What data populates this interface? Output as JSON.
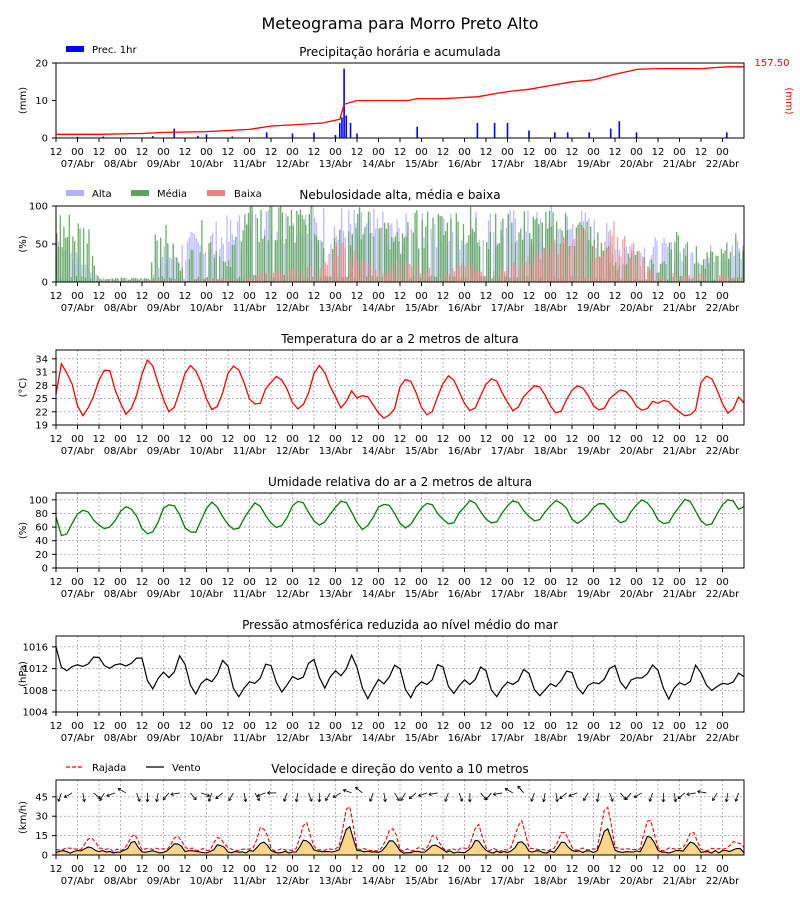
{
  "title": "Meteograma para Morro Preto Alto",
  "x_tick_hours": [
    "12",
    "00",
    "12",
    "00",
    "12",
    "00",
    "12",
    "00",
    "12",
    "00",
    "12",
    "00",
    "12",
    "00",
    "12",
    "00",
    "12",
    "00",
    "12",
    "00",
    "12",
    "00",
    "12",
    "00",
    "12",
    "00",
    "12",
    "00",
    "12",
    "00",
    "12",
    "00"
  ],
  "x_day_labels": [
    "07/Abr",
    "08/Abr",
    "09/Abr",
    "10/Abr",
    "11/Abr",
    "12/Abr",
    "13/Abr",
    "14/Abr",
    "15/Abr",
    "16/Abr",
    "17/Abr",
    "18/Abr",
    "19/Abr",
    "20/Abr",
    "21/Abr",
    "22/Abr"
  ],
  "colors": {
    "precip_bar": "#0000ff",
    "accum_line": "#ff0000",
    "alta": "#b0b0ff",
    "media": "#5aa55a",
    "baixa": "#f08080",
    "temp": "#ff0000",
    "rh": "#008000",
    "pres": "#000000",
    "gust": "#ff0000",
    "wind": "#000000",
    "wind_fill": "#ffd27a"
  },
  "chart_data": [
    {
      "type": "bar",
      "title": "Precipitação horária e acumulada",
      "ylabel": "(mm)",
      "ylabel_right": "(mm)",
      "ylim": [
        0,
        20
      ],
      "yticks": [
        "0",
        "10",
        "20"
      ],
      "legend": [
        "Prec. 1hr"
      ],
      "accum_end_label": "157.50",
      "hourly_bars": [
        [
          0.5,
          0.3
        ],
        [
          1.1,
          0.4
        ],
        [
          2.25,
          0.5
        ],
        [
          2.75,
          2.5
        ],
        [
          3.3,
          0.6
        ],
        [
          3.5,
          1.0
        ],
        [
          4.1,
          0.4
        ],
        [
          4.9,
          1.5
        ],
        [
          5.5,
          1.2
        ],
        [
          6.0,
          1.4
        ],
        [
          6.5,
          0.8
        ],
        [
          6.6,
          4
        ],
        [
          6.65,
          5.5
        ],
        [
          6.7,
          18.5
        ],
        [
          6.75,
          6
        ],
        [
          6.85,
          4
        ],
        [
          7.0,
          1.2
        ],
        [
          8.4,
          3.0
        ],
        [
          9.8,
          4
        ],
        [
          10.2,
          4
        ],
        [
          10.5,
          4
        ],
        [
          11.0,
          2
        ],
        [
          11.6,
          1.5
        ],
        [
          11.9,
          1.5
        ],
        [
          12.4,
          1.5
        ],
        [
          12.9,
          2.5
        ],
        [
          13.1,
          4.5
        ],
        [
          13.5,
          1.5
        ],
        [
          15.6,
          1.5
        ]
      ],
      "accum_x": [
        0,
        1,
        2,
        2.5,
        3.5,
        4.5,
        5.0,
        5.5,
        6.2,
        6.6,
        6.7,
        7.0,
        7.5,
        8.2,
        8.4,
        9.0,
        9.8,
        10.3,
        10.6,
        11.0,
        11.5,
        12.0,
        12.5,
        13.0,
        13.4,
        13.5,
        14.0,
        15.0,
        15.6,
        16.0
      ],
      "accum_y": [
        1,
        1,
        1.2,
        1.5,
        1.7,
        2.3,
        3.2,
        3.5,
        4,
        5,
        9,
        10,
        10,
        10,
        10.5,
        10.5,
        11,
        12,
        12.5,
        13,
        14,
        15,
        15.5,
        17,
        18,
        18.3,
        18.5,
        18.5,
        19,
        19
      ]
    },
    {
      "type": "bar",
      "title": "Nebulosidade alta, média e baixa",
      "ylabel": "(%)",
      "ylim": [
        0,
        100
      ],
      "yticks": [
        "0",
        "50",
        "100"
      ],
      "legend": [
        "Alta",
        "Média",
        "Baixa"
      ],
      "media_profile": [
        [
          0,
          90
        ],
        [
          0.8,
          70
        ],
        [
          1.0,
          5
        ],
        [
          2.2,
          5
        ],
        [
          2.3,
          90
        ],
        [
          2.6,
          60
        ],
        [
          3.0,
          10
        ],
        [
          3.3,
          70
        ],
        [
          3.7,
          60
        ],
        [
          4.0,
          20
        ],
        [
          4.3,
          90
        ],
        [
          5.0,
          95
        ],
        [
          5.8,
          90
        ],
        [
          6.2,
          85
        ],
        [
          6.6,
          75
        ],
        [
          7.0,
          85
        ],
        [
          7.6,
          80
        ],
        [
          8.0,
          55
        ],
        [
          8.4,
          80
        ],
        [
          9.0,
          85
        ],
        [
          9.6,
          90
        ],
        [
          10.0,
          80
        ],
        [
          10.6,
          75
        ],
        [
          11.0,
          85
        ],
        [
          11.5,
          80
        ],
        [
          12.0,
          85
        ],
        [
          12.5,
          70
        ],
        [
          13.0,
          30
        ],
        [
          13.6,
          35
        ],
        [
          14.0,
          20
        ],
        [
          14.5,
          80
        ],
        [
          15.0,
          30
        ],
        [
          15.5,
          40
        ],
        [
          16.0,
          70
        ]
      ],
      "alta_profile": [
        [
          0,
          70
        ],
        [
          1,
          5
        ],
        [
          2.2,
          5
        ],
        [
          2.5,
          40
        ],
        [
          3.3,
          60
        ],
        [
          4.3,
          80
        ],
        [
          5.0,
          90
        ],
        [
          6.0,
          90
        ],
        [
          7.0,
          85
        ],
        [
          8.0,
          75
        ],
        [
          9.0,
          80
        ],
        [
          10.0,
          85
        ],
        [
          11.0,
          80
        ],
        [
          12.0,
          90
        ],
        [
          13.0,
          60
        ],
        [
          14.0,
          50
        ],
        [
          15.0,
          40
        ],
        [
          16.0,
          50
        ]
      ],
      "baixa_profile": [
        [
          0,
          0
        ],
        [
          4.5,
          5
        ],
        [
          5.0,
          15
        ],
        [
          6.2,
          20
        ],
        [
          6.6,
          50
        ],
        [
          7.0,
          35
        ],
        [
          7.6,
          10
        ],
        [
          8.0,
          30
        ],
        [
          9.0,
          10
        ],
        [
          9.6,
          25
        ],
        [
          10.0,
          10
        ],
        [
          11.0,
          30
        ],
        [
          11.5,
          50
        ],
        [
          12.0,
          55
        ],
        [
          12.3,
          80
        ],
        [
          12.6,
          30
        ],
        [
          13.0,
          70
        ],
        [
          13.4,
          50
        ],
        [
          14.0,
          10
        ],
        [
          15.0,
          10
        ],
        [
          16.0,
          5
        ]
      ]
    },
    {
      "type": "line",
      "title": "Temperatura do ar a 2 metros de altura",
      "ylabel": "(°C)",
      "ylim": [
        19,
        36
      ],
      "yticks": [
        "19",
        "22",
        "25",
        "28",
        "31",
        "34"
      ],
      "daily_max": [
        32.5,
        31.8,
        33.2,
        32.8,
        32.2,
        30.2,
        32.2,
        26.0,
        29.8,
        30.0,
        29.5,
        28.0,
        28.0,
        27.0,
        24.5,
        30.5
      ],
      "daily_min": [
        21.5,
        21.8,
        22.2,
        22.5,
        23.2,
        23.0,
        23.0,
        20.5,
        21.5,
        22.5,
        22.5,
        21.8,
        22.5,
        22.5,
        21.0,
        22.0
      ],
      "start_value": 26.0,
      "end_value": 24.0
    },
    {
      "type": "line",
      "title": "Umidade relativa do ar a 2 metros de altura",
      "ylabel": "(%)",
      "ylim": [
        0,
        110
      ],
      "yticks": [
        "0",
        "20",
        "40",
        "60",
        "80",
        "100"
      ],
      "daily_max": [
        85,
        90,
        95,
        95,
        95,
        97,
        98,
        95,
        95,
        98,
        99,
        98,
        96,
        99,
        99,
        100
      ],
      "daily_min": [
        47,
        57,
        50,
        50,
        56,
        60,
        64,
        58,
        60,
        65,
        66,
        70,
        67,
        68,
        63,
        63
      ],
      "start_value": 75,
      "end_value": 90
    },
    {
      "type": "line",
      "title": "Pressão atmosférica reduzida ao nível médio do mar",
      "ylabel": "(hPa)",
      "ylim": [
        1004,
        1018
      ],
      "yticks": [
        "1004",
        "1008",
        "1012",
        "1016"
      ],
      "daily_max": [
        1013.8,
        1014.0,
        1013.8,
        1013.2,
        1012.5,
        1012.5,
        1014.0,
        1012.5,
        1012.2,
        1012.2,
        1011.5,
        1011.5,
        1011.5,
        1012.5,
        1012.0,
        1011.0
      ],
      "daily_min": [
        1011.5,
        1012.0,
        1008.5,
        1007.5,
        1007.0,
        1008.0,
        1009.0,
        1007.0,
        1007.0,
        1007.5,
        1007.2,
        1007.0,
        1007.5,
        1008.5,
        1006.8,
        1008.0
      ],
      "start_value": 1016.0,
      "end_value": 1010.5
    },
    {
      "type": "line",
      "title": "Velocidade e direção do vento a 10 metros",
      "ylabel": "(km/h)",
      "ylim": [
        0,
        58
      ],
      "yticks": [
        "0",
        "15",
        "30",
        "45"
      ],
      "legend": [
        "Rajada",
        "Vento"
      ],
      "wind_daily_peak": [
        6,
        10,
        9,
        8,
        10,
        12,
        22,
        12,
        8,
        12,
        11,
        10,
        20,
        15,
        10,
        5
      ],
      "gust_daily_peak": [
        14,
        16,
        15,
        14,
        22,
        26,
        38,
        22,
        16,
        23,
        26,
        18,
        37,
        28,
        18,
        10
      ],
      "wind_dirs": [
        200,
        240,
        170,
        130,
        210,
        250,
        300,
        160,
        180,
        190,
        220,
        260,
        140,
        110,
        200,
        230,
        210,
        170,
        150,
        250,
        270,
        200,
        190,
        160,
        180,
        210,
        240,
        290,
        310,
        200,
        170,
        150,
        210,
        230,
        250,
        260,
        200,
        160,
        180,
        140,
        220,
        260,
        300,
        320,
        200,
        190,
        170,
        230,
        250,
        210,
        190,
        160,
        140,
        220,
        240,
        200,
        180,
        170,
        230,
        260,
        280,
        210,
        190,
        200
      ]
    }
  ]
}
